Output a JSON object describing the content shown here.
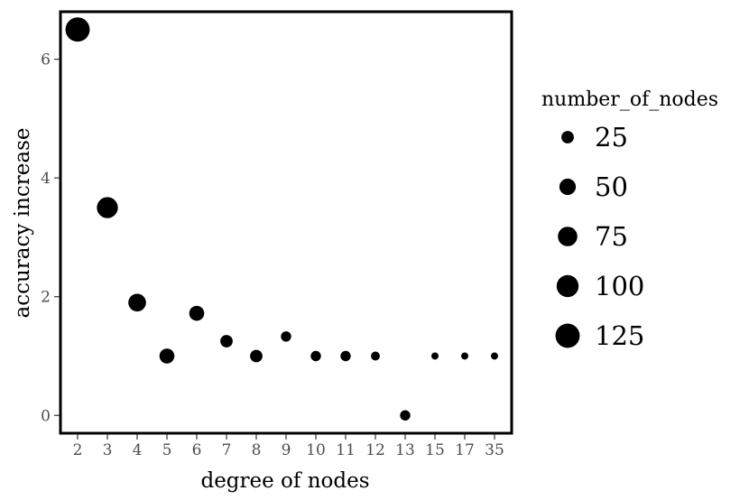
{
  "chart_data": {
    "type": "scatter",
    "title": "",
    "xlabel": "degree of nodes",
    "ylabel": "accuracy increase",
    "categories": [
      "2",
      "3",
      "4",
      "5",
      "6",
      "7",
      "8",
      "9",
      "10",
      "11",
      "12",
      "13",
      "15",
      "17",
      "35"
    ],
    "y_ticks": [
      "0",
      "2",
      "4",
      "6"
    ],
    "ylim": [
      -0.3,
      6.8
    ],
    "grid": false,
    "points": [
      {
        "x": "2",
        "y": 6.5,
        "size": 125
      },
      {
        "x": "3",
        "y": 3.5,
        "size": 90
      },
      {
        "x": "4",
        "y": 1.9,
        "size": 60
      },
      {
        "x": "5",
        "y": 1.0,
        "size": 40
      },
      {
        "x": "6",
        "y": 1.72,
        "size": 40
      },
      {
        "x": "7",
        "y": 1.25,
        "size": 25
      },
      {
        "x": "8",
        "y": 1.0,
        "size": 25
      },
      {
        "x": "9",
        "y": 1.33,
        "size": 15
      },
      {
        "x": "10",
        "y": 1.0,
        "size": 15
      },
      {
        "x": "11",
        "y": 1.0,
        "size": 15
      },
      {
        "x": "12",
        "y": 1.0,
        "size": 10
      },
      {
        "x": "13",
        "y": 0.0,
        "size": 15
      },
      {
        "x": "15",
        "y": 1.0,
        "size": 5
      },
      {
        "x": "17",
        "y": 1.0,
        "size": 5
      },
      {
        "x": "35",
        "y": 1.0,
        "size": 5
      }
    ],
    "legend": {
      "title": "number_of_nodes",
      "placement": "right",
      "entries": [
        {
          "label": "25",
          "size": 25
        },
        {
          "label": "50",
          "size": 50
        },
        {
          "label": "75",
          "size": 75
        },
        {
          "label": "100",
          "size": 100
        },
        {
          "label": "125",
          "size": 125
        }
      ]
    },
    "colors": {
      "points": "#000000",
      "tick_labels": "#4d4d4d",
      "panel_border": "#000000"
    }
  }
}
